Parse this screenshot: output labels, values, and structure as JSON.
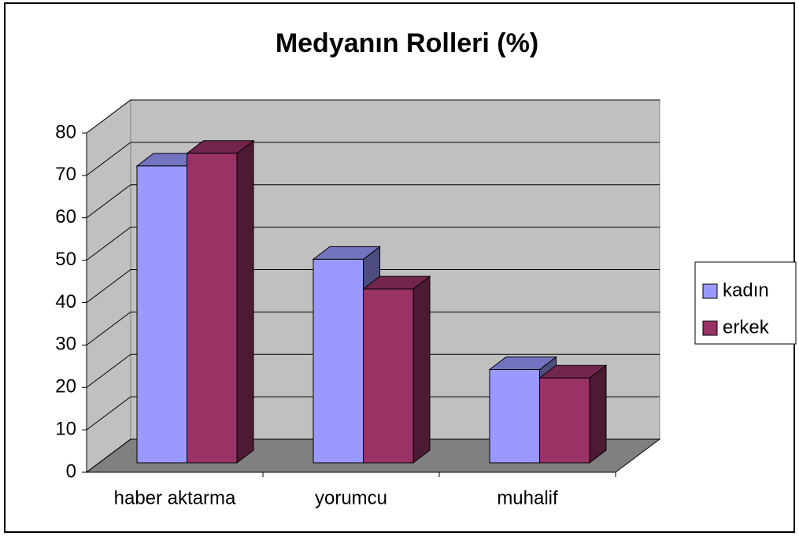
{
  "chart_data": {
    "type": "bar3d",
    "title": "Medyanın Rolleri (%)",
    "categories": [
      "haber aktarma",
      "yorumcu",
      "muhalif"
    ],
    "series": [
      {
        "name": "kadın",
        "color": "#9999ff",
        "values": [
          70,
          48,
          22
        ]
      },
      {
        "name": "erkek",
        "color": "#993366",
        "values": [
          73,
          41,
          20
        ]
      }
    ],
    "ylim": [
      0,
      80
    ],
    "yticks": [
      0,
      10,
      20,
      30,
      40,
      50,
      60,
      70,
      80
    ],
    "grid": true,
    "legend": "right"
  }
}
